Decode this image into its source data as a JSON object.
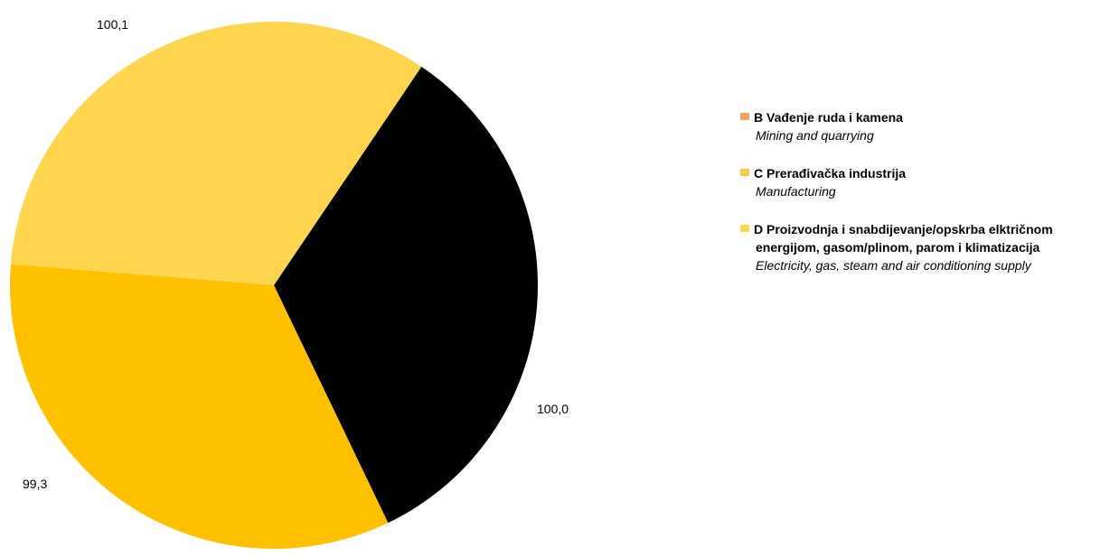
{
  "chart_data": {
    "type": "pie",
    "title": "",
    "categories": [
      "B Vađenje ruda i kamena",
      "C Prerađivačka industrija",
      "D Proizvodnja i snabdijevanje/opskrba elktričnom energijom, gasom/plinom, parom i klimatizacija"
    ],
    "categories_en": [
      "Mining and quarrying",
      "Manufacturing",
      "Electricity, gas, steam and air conditioning supply"
    ],
    "values": [
      100.1,
      100.0,
      99.3
    ],
    "value_labels": [
      "100,1",
      "100,0",
      "99,3"
    ],
    "colors": [
      "#000000",
      "#FFC000",
      "#FFD54F"
    ],
    "legend_colors": [
      "#F4A259",
      "#FFC84A",
      "#FFD54F"
    ],
    "legend_position": "right",
    "start_angle_deg": 34
  },
  "legend": {
    "items": [
      {
        "title": "B Vađenje ruda i kamena",
        "subtitle": "Mining and quarrying"
      },
      {
        "title": "C Prerađivačka industrija",
        "subtitle": "Manufacturing"
      },
      {
        "title": "D Proizvodnja i snabdijevanje/opskrba elktričnom energijom, gasom/plinom, parom i klimatizacija",
        "subtitle": "Electricity, gas, steam and air conditioning supply"
      }
    ]
  }
}
